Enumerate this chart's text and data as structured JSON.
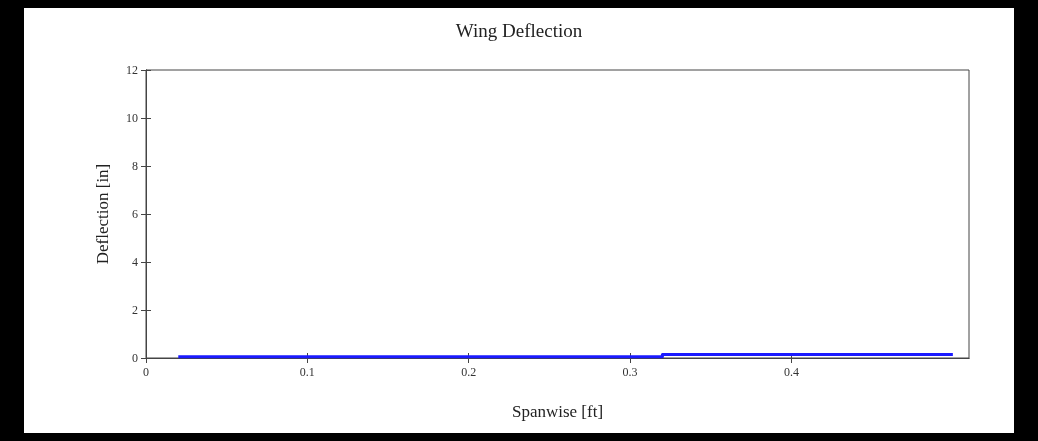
{
  "chart_data": {
    "type": "line",
    "title": "Wing Deflection",
    "xlabel": "Spanwise [ft]",
    "ylabel": "Deflection [in]",
    "series": [
      {
        "color": "#1a1aff",
        "x": [
          0.02,
          0.1,
          0.2,
          0.32,
          0.32,
          0.4,
          0.5
        ],
        "values": [
          0.05,
          0.05,
          0.05,
          0.05,
          0.15,
          0.15,
          0.15
        ]
      }
    ],
    "xlim": [
      0,
      0.51
    ],
    "xticks": [
      0,
      0.1,
      0.2,
      0.3,
      0.4
    ],
    "ylim": [
      0,
      12
    ],
    "yticks": [
      0,
      2,
      4,
      6,
      8,
      10,
      12
    ],
    "marker": "none",
    "line_style": "solid"
  }
}
